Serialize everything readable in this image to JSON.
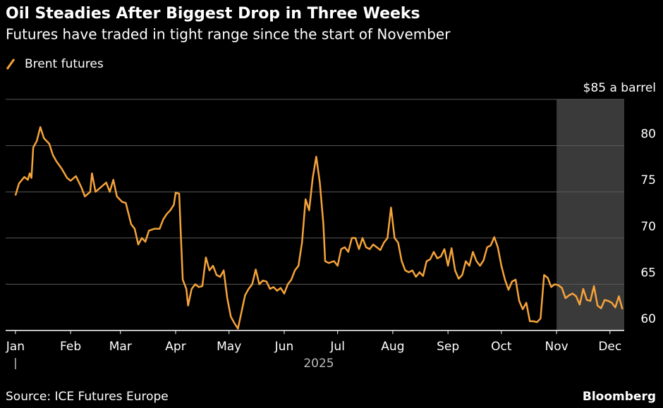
{
  "chart_data": {
    "type": "line",
    "title": "Oil Steadies After Biggest Drop in Three Weeks",
    "subtitle": "Futures have traded in tight range since the start of November",
    "source": "Source: ICE Futures Europe",
    "brand": "Bloomberg",
    "year_label": "2025",
    "legend": "top-left",
    "grid": true,
    "highlight": {
      "from": 305,
      "to": 343,
      "color": "#3a3a3a"
    },
    "xlim": [
      -4.5,
      343
    ],
    "xticks": [
      {
        "value": 1,
        "label": "Jan"
      },
      {
        "value": 32,
        "label": "Feb"
      },
      {
        "value": 60,
        "label": "Mar"
      },
      {
        "value": 91,
        "label": "Apr"
      },
      {
        "value": 121,
        "label": "May"
      },
      {
        "value": 152,
        "label": "Jun"
      },
      {
        "value": 182,
        "label": "Jul"
      },
      {
        "value": 213,
        "label": "Aug"
      },
      {
        "value": 244,
        "label": "Sep"
      },
      {
        "value": 274,
        "label": "Oct"
      },
      {
        "value": 305,
        "label": "Nov"
      },
      {
        "value": 335,
        "label": "Dec"
      }
    ],
    "ylim": [
      60,
      85
    ],
    "yticks": [
      60,
      65,
      70,
      75,
      80,
      {
        "value": 85,
        "label": "$85 a barrel"
      }
    ],
    "x": [
      1,
      3,
      6,
      8,
      9,
      10,
      11,
      13,
      15,
      17,
      20,
      22,
      24,
      27,
      30,
      32,
      35,
      38,
      40,
      43,
      44,
      46,
      49,
      52,
      54,
      56,
      58,
      61,
      63,
      66,
      68,
      70,
      72,
      74,
      76,
      79,
      82,
      84,
      86,
      88,
      90,
      91,
      93,
      94,
      95,
      97,
      98,
      100,
      102,
      104,
      106,
      108,
      110,
      112,
      114,
      116,
      118,
      120,
      122,
      124,
      126,
      128,
      130,
      132,
      134,
      136,
      138,
      140,
      142,
      144,
      146,
      148,
      150,
      152,
      154,
      156,
      158,
      160,
      162,
      164,
      166,
      168,
      170,
      172,
      174,
      175,
      177,
      180,
      182,
      184,
      186,
      188,
      190,
      192,
      194,
      196,
      198,
      200,
      202,
      204,
      206,
      208,
      210,
      212,
      214,
      216,
      218,
      220,
      222,
      224,
      226,
      228,
      230,
      232,
      234,
      236,
      238,
      240,
      242,
      244,
      246,
      248,
      250,
      252,
      254,
      256,
      258,
      260,
      262,
      264,
      266,
      268,
      270,
      272,
      274,
      276,
      278,
      280,
      282,
      284,
      286,
      288,
      290,
      292,
      294,
      296,
      298,
      300,
      302,
      304,
      306,
      308,
      310,
      312,
      314,
      316,
      318,
      320,
      322,
      324,
      326,
      328,
      330,
      332,
      334,
      336,
      338,
      340,
      342
    ],
    "series": [
      {
        "name": "Brent futures",
        "color": "#f5a33a",
        "values": [
          74.6,
          75.9,
          76.6,
          76.3,
          77.0,
          76.5,
          79.8,
          80.5,
          82.0,
          80.8,
          80.2,
          79.0,
          78.3,
          77.5,
          76.5,
          76.2,
          76.7,
          75.5,
          74.5,
          75.0,
          77.0,
          75.0,
          75.5,
          76.0,
          75.0,
          76.3,
          74.5,
          73.9,
          73.8,
          71.5,
          71.0,
          69.3,
          70.0,
          69.6,
          70.8,
          71.0,
          71.0,
          72.0,
          72.6,
          73.0,
          73.6,
          74.9,
          74.8,
          70.0,
          65.5,
          64.5,
          62.7,
          64.5,
          65.0,
          64.7,
          64.8,
          67.9,
          66.5,
          67.0,
          66.0,
          65.8,
          66.5,
          63.5,
          61.5,
          60.8,
          60.2,
          62.0,
          63.8,
          64.5,
          65.0,
          66.6,
          65.0,
          65.4,
          65.3,
          64.5,
          64.7,
          64.3,
          64.6,
          64.0,
          65.0,
          65.5,
          66.5,
          67.0,
          69.5,
          74.2,
          73.0,
          76.5,
          78.8,
          76.0,
          71.5,
          67.5,
          67.3,
          67.5,
          67.0,
          68.8,
          69.0,
          68.5,
          70.0,
          70.0,
          68.8,
          70.0,
          69.0,
          68.8,
          69.3,
          69.0,
          68.7,
          69.5,
          70.0,
          73.3,
          70.0,
          69.5,
          67.5,
          66.5,
          66.3,
          66.5,
          65.8,
          66.3,
          65.9,
          67.5,
          67.7,
          68.5,
          67.8,
          68.0,
          68.8,
          67.0,
          68.9,
          66.5,
          65.6,
          66.0,
          67.5,
          67.0,
          68.5,
          67.5,
          67.0,
          67.6,
          69.0,
          69.2,
          70.1,
          69.0,
          67.0,
          65.5,
          64.4,
          65.3,
          65.5,
          63.2,
          62.3,
          63.0,
          61.0,
          61.0,
          60.9,
          61.3,
          66.0,
          65.7,
          64.7,
          65.0,
          64.9,
          64.6,
          63.5,
          63.8,
          64.0,
          63.7,
          62.8,
          64.5,
          63.3,
          63.2,
          64.8,
          62.7,
          62.4,
          63.3,
          63.2,
          63.0,
          62.5,
          63.7,
          62.3
        ]
      }
    ]
  }
}
